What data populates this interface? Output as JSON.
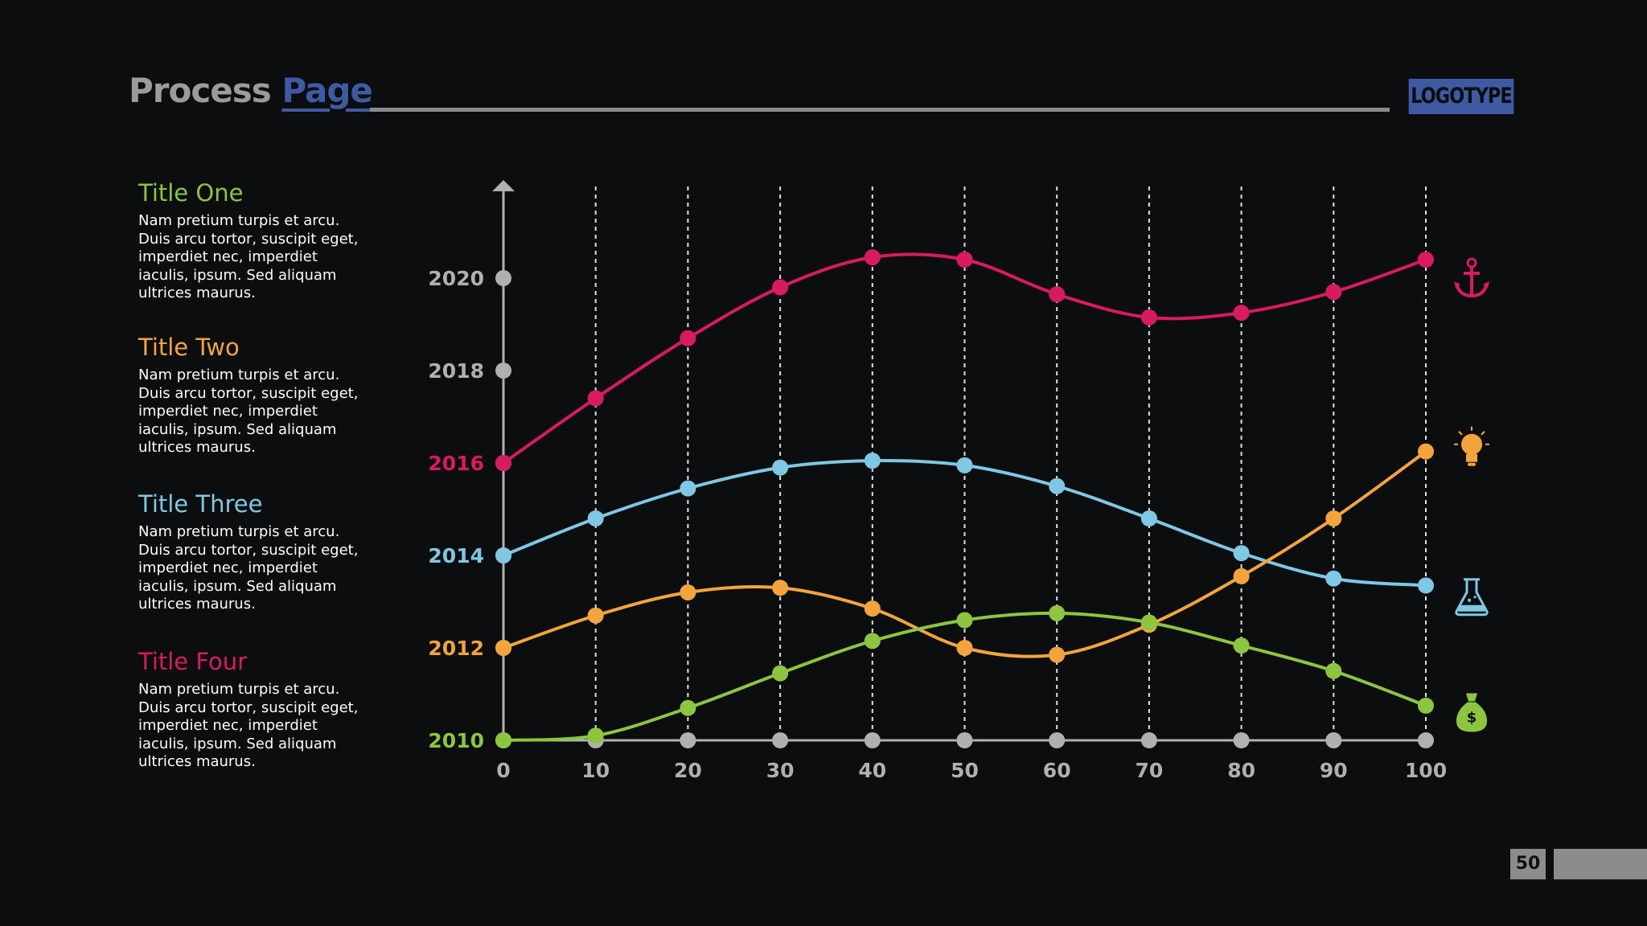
{
  "header": {
    "title_part1": "Process",
    "title_part2": "Page",
    "logo": "LOGOTYPE"
  },
  "sidebar": [
    {
      "title": "Title One",
      "color": "#8cc63f",
      "text": "Nam pretium turpis et arcu. Duis arcu tortor, suscipit eget, imperdiet nec, imperdiet iaculis, ipsum. Sed aliquam ultrices maurus."
    },
    {
      "title": "Title Two",
      "color": "#f3a43b",
      "text": "Nam pretium turpis et arcu. Duis arcu tortor, suscipit eget, imperdiet nec, imperdiet iaculis, ipsum. Sed aliquam ultrices maurus."
    },
    {
      "title": "Title Three",
      "color": "#7ec8e3",
      "text": "Nam pretium turpis et arcu. Duis arcu tortor, suscipit eget, imperdiet nec, imperdiet iaculis, ipsum. Sed aliquam ultrices maurus."
    },
    {
      "title": "Title Four",
      "color": "#d81b60",
      "text": "Nam pretium turpis et arcu. Duis arcu tortor, suscipit eget, imperdiet nec, imperdiet iaculis, ipsum. Sed aliquam ultrices maurus."
    }
  ],
  "page_number": "50",
  "chart_data": {
    "type": "line",
    "x": [
      0,
      10,
      20,
      30,
      40,
      50,
      60,
      70,
      80,
      90,
      100
    ],
    "xlim": [
      0,
      100
    ],
    "ylim": [
      2010,
      2022
    ],
    "y_ticks": [
      {
        "label": "2010",
        "value": 2010,
        "color": "#8cc63f"
      },
      {
        "label": "2012",
        "value": 2012,
        "color": "#f3a43b"
      },
      {
        "label": "2014",
        "value": 2014,
        "color": "#7ec8e3"
      },
      {
        "label": "2016",
        "value": 2016,
        "color": "#d81b60"
      },
      {
        "label": "2018",
        "value": 2018,
        "color": "#b0b0b3"
      },
      {
        "label": "2020",
        "value": 2020,
        "color": "#b0b0b3"
      }
    ],
    "axis_color": "#b0b0b3",
    "series": [
      {
        "color": "#d81b60",
        "icon": "anchor-icon",
        "values": [
          2016.0,
          2017.4,
          2018.7,
          2019.8,
          2020.45,
          2020.4,
          2019.65,
          2019.15,
          2019.25,
          2019.7,
          2020.4
        ]
      },
      {
        "color": "#7ec8e3",
        "icon": "lightbulb-icon-none",
        "values": [
          2014.0,
          2014.8,
          2015.45,
          2015.9,
          2016.05,
          2015.95,
          2015.5,
          2014.8,
          2014.05,
          2013.5,
          2013.35
        ]
      },
      {
        "color": "#f3a43b",
        "icon": "lightbulb-icon",
        "values": [
          2012.0,
          2012.7,
          2013.2,
          2013.3,
          2012.85,
          2012.0,
          2011.85,
          2012.5,
          2013.55,
          2014.8,
          2016.25
        ]
      },
      {
        "color": "#8cc63f",
        "icon": "money-bag-icon",
        "values": [
          2010.0,
          2010.1,
          2010.7,
          2011.45,
          2012.15,
          2012.6,
          2012.75,
          2012.55,
          2012.05,
          2011.5,
          2010.75
        ]
      }
    ],
    "icons": [
      {
        "name": "anchor-icon",
        "color": "#d81b60",
        "value": 2020.0
      },
      {
        "name": "lightbulb-icon",
        "color": "#f3a43b",
        "value": 2016.3
      },
      {
        "name": "flask-icon",
        "color": "#7ec8e3",
        "value": 2013.1
      },
      {
        "name": "money-bag-icon",
        "color": "#8cc63f",
        "value": 2010.6
      }
    ]
  }
}
